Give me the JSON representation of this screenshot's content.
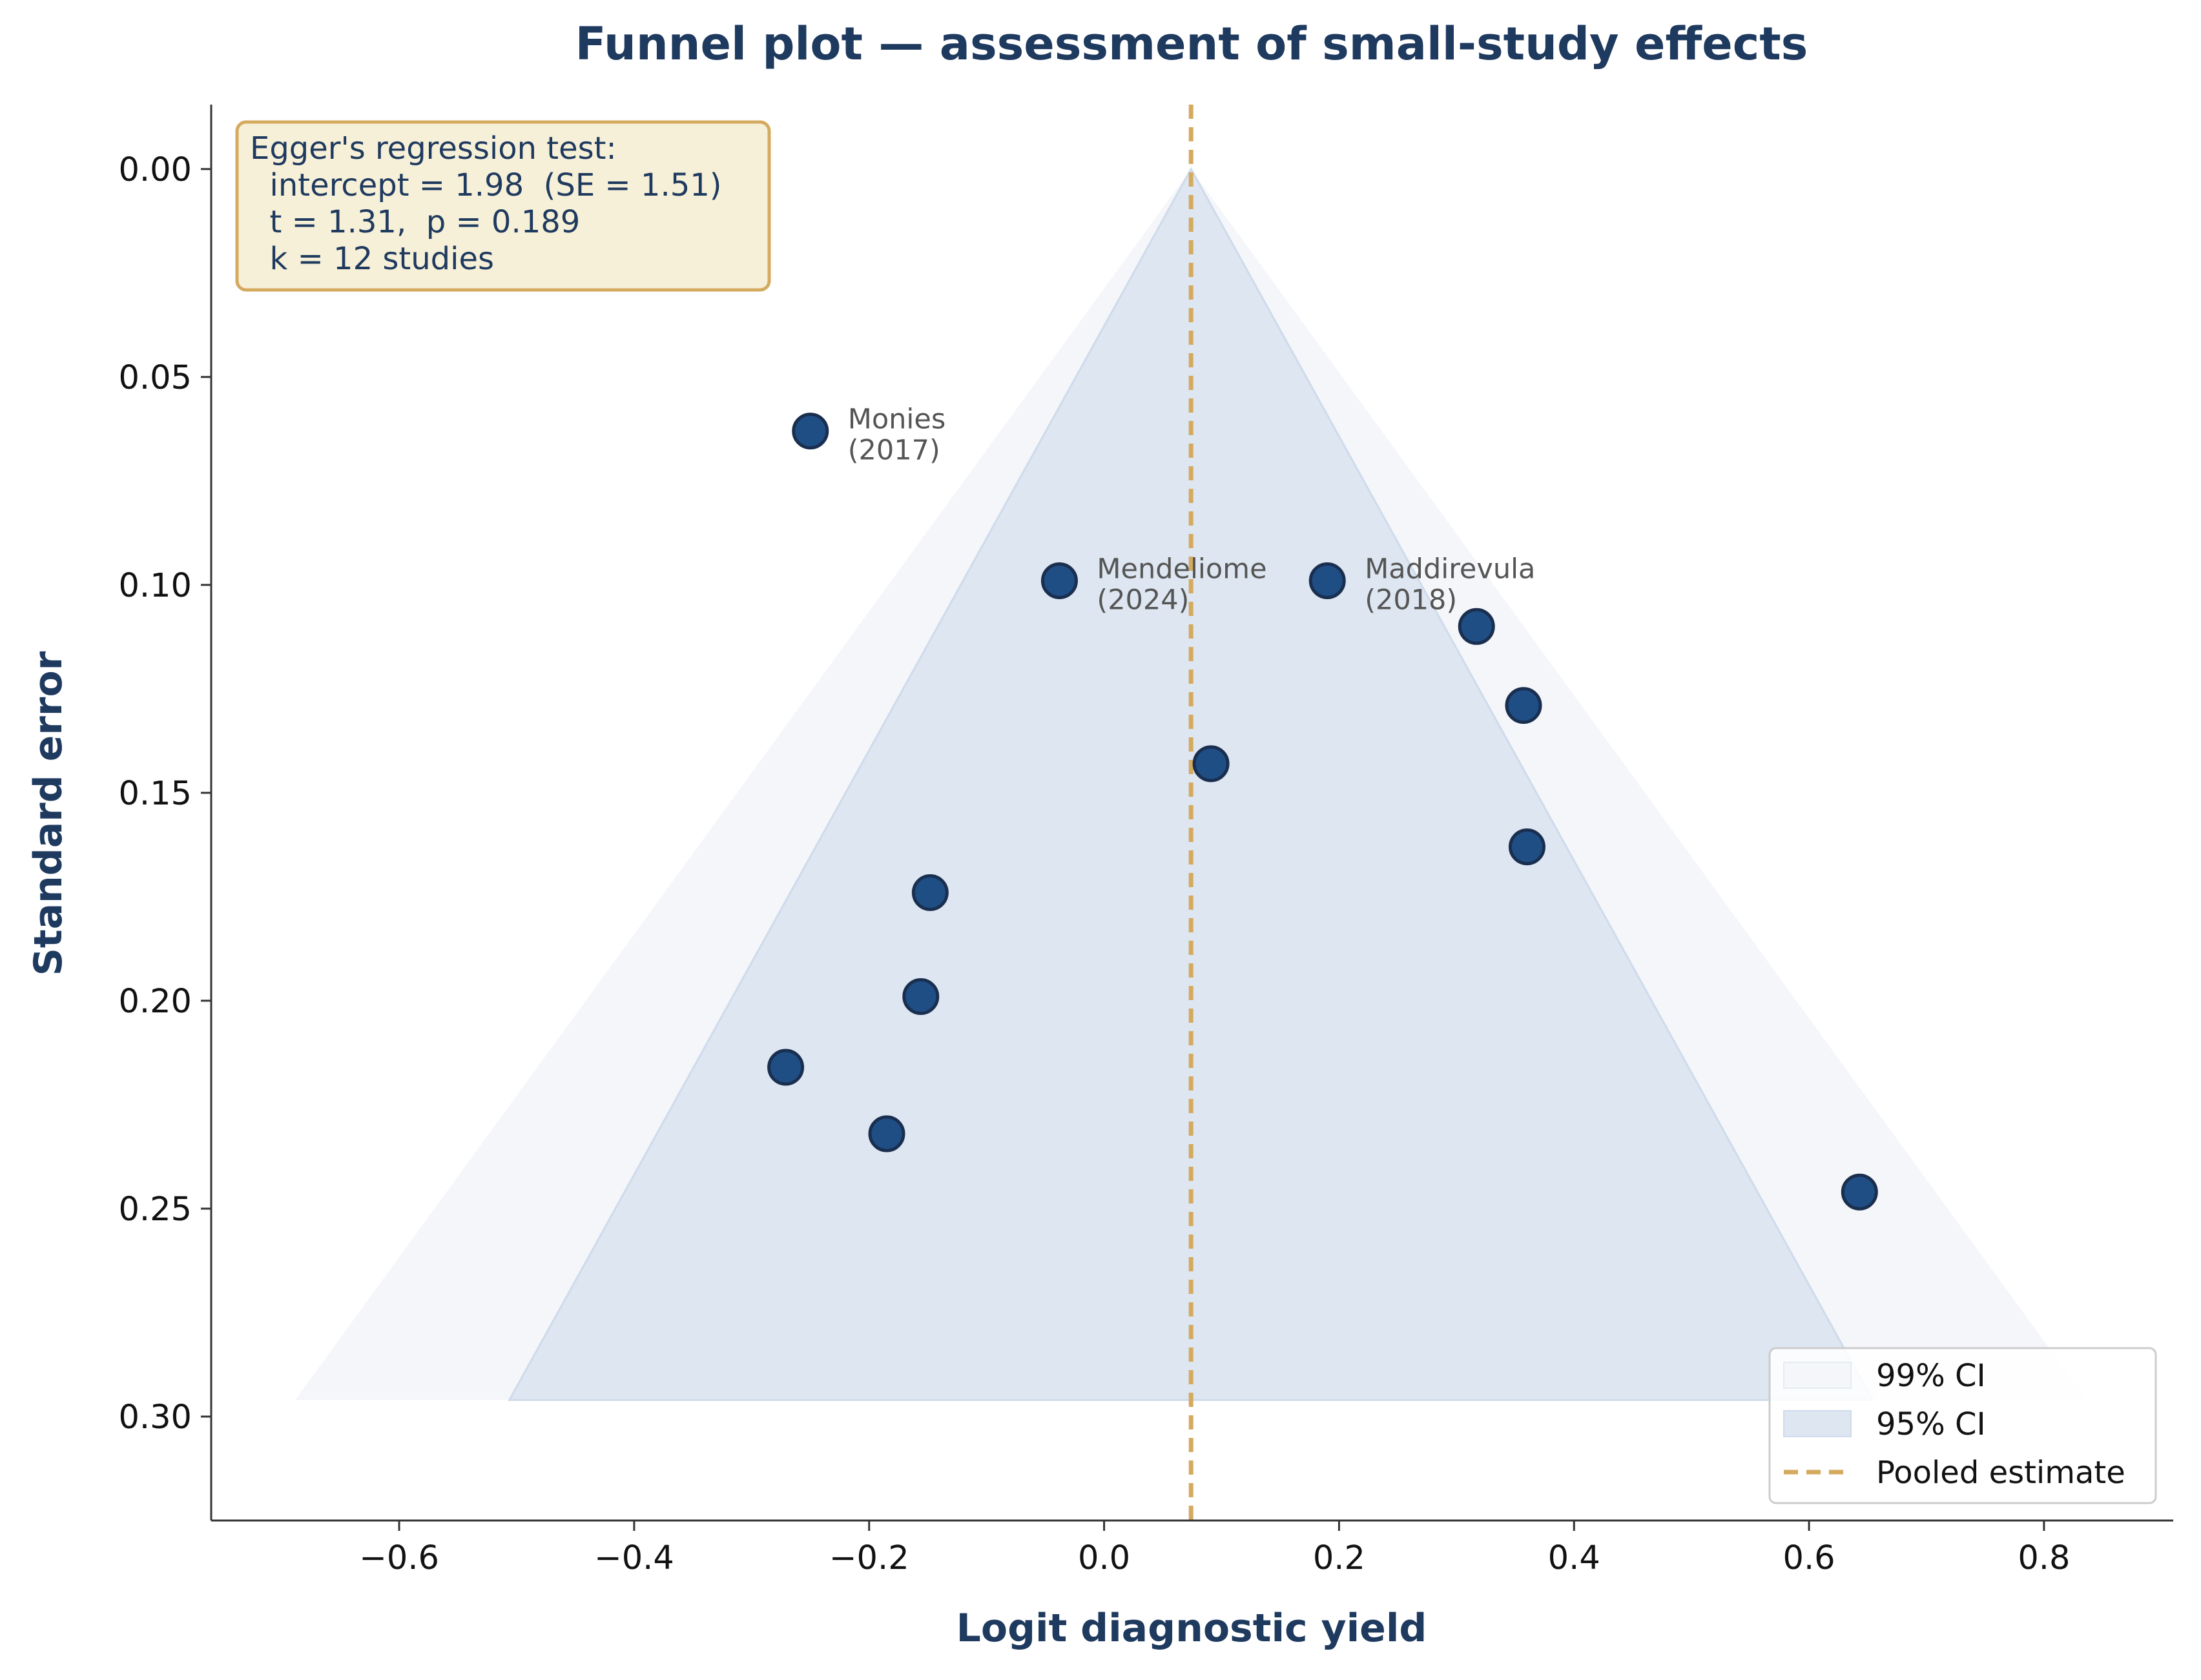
{
  "chart_data": {
    "type": "scatter",
    "title": "Funnel plot — assessment of small-study effects",
    "xlabel": "Logit diagnostic yield",
    "ylabel": "Standard error",
    "xlim": [
      -0.76,
      0.91
    ],
    "ylim": [
      0.325,
      -0.0155
    ],
    "y_inverted": true,
    "xticks": [
      -0.6,
      -0.4,
      -0.2,
      0.0,
      0.2,
      0.4,
      0.6,
      0.8
    ],
    "xtick_labels": [
      "−0.6",
      "−0.4",
      "−0.2",
      "0.0",
      "0.2",
      "0.4",
      "0.6",
      "0.8"
    ],
    "yticks": [
      0.0,
      0.05,
      0.1,
      0.15,
      0.2,
      0.25,
      0.3
    ],
    "ytick_labels": [
      "0.00",
      "0.05",
      "0.10",
      "0.15",
      "0.20",
      "0.25",
      "0.30"
    ],
    "pooled_estimate": 0.074,
    "funnel_se_max": 0.296,
    "ci": [
      {
        "name": "99% CI",
        "z": 2.576,
        "color": "#f4f6f9"
      },
      {
        "name": "95% CI",
        "z": 1.96,
        "color": "#dde6f1"
      }
    ],
    "points": [
      {
        "x": -0.25,
        "y": 0.063
      },
      {
        "x": -0.038,
        "y": 0.099
      },
      {
        "x": 0.19,
        "y": 0.099
      },
      {
        "x": 0.317,
        "y": 0.11
      },
      {
        "x": 0.357,
        "y": 0.129
      },
      {
        "x": 0.091,
        "y": 0.143
      },
      {
        "x": 0.36,
        "y": 0.163
      },
      {
        "x": -0.148,
        "y": 0.174
      },
      {
        "x": -0.156,
        "y": 0.199
      },
      {
        "x": -0.271,
        "y": 0.216
      },
      {
        "x": -0.185,
        "y": 0.232
      },
      {
        "x": 0.643,
        "y": 0.246
      }
    ],
    "annotations": [
      {
        "line1": "Monies",
        "line2": "(2017)",
        "x": -0.25,
        "y": 0.063
      },
      {
        "line1": "Mendeliome",
        "line2": "(2024)",
        "x": -0.038,
        "y": 0.099
      },
      {
        "line1": "Maddirevula",
        "line2": "(2018)",
        "x": 0.19,
        "y": 0.099
      }
    ],
    "egger_box": {
      "lines": [
        "Egger's regression test:",
        "  intercept = 1.98  (SE = 1.51)",
        "  t = 1.31,  p = 0.189",
        "  k = 12 studies"
      ]
    },
    "legend": {
      "position": "bottom-right",
      "entries": [
        "99% CI",
        "95% CI",
        "Pooled estimate"
      ]
    },
    "grid": false,
    "colors": {
      "point_fill": "#1f4e85",
      "point_edge": "#1a2f4f",
      "pooled_line": "#d4aa5f",
      "title": "#1f3a5f",
      "box_fill": "#f7f0d8",
      "box_edge": "#d4aa5f"
    }
  }
}
